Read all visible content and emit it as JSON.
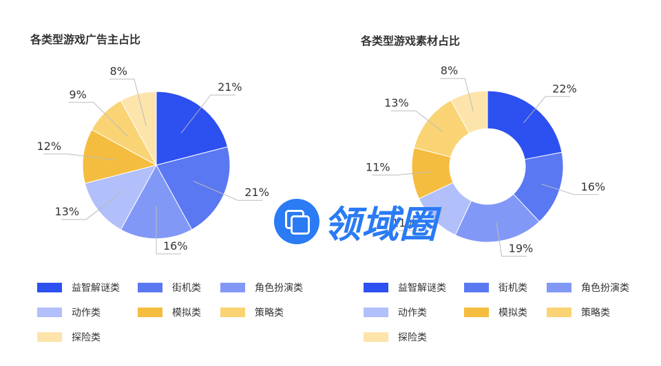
{
  "colors": [
    "#2d50f0",
    "#5a78f2",
    "#8298f7",
    "#b1bffa",
    "#f5bd3f",
    "#fad474",
    "#fde4ab"
  ],
  "chart_data": [
    {
      "type": "pie",
      "title": "各类型游戏广告主占比",
      "categories": [
        "益智解谜类",
        "街机类",
        "角色扮演类",
        "动作类",
        "模拟类",
        "策略类",
        "探险类"
      ],
      "values": [
        21,
        21,
        16,
        13,
        12,
        9,
        8
      ],
      "labels": [
        "21%",
        "21%",
        "16%",
        "13%",
        "12%",
        "9%",
        "8%"
      ],
      "legend_position": "bottom"
    },
    {
      "type": "pie",
      "variant": "donut",
      "title": "各类型游戏素材占比",
      "categories": [
        "益智解谜类",
        "街机类",
        "角色扮演类",
        "动作类",
        "模拟类",
        "策略类",
        "探险类"
      ],
      "values": [
        22,
        16,
        19,
        11,
        11,
        13,
        8
      ],
      "labels": [
        "22%",
        "16%",
        "19%",
        "11%",
        "11%",
        "13%",
        "8%"
      ],
      "legend_position": "bottom"
    }
  ],
  "watermark": {
    "text": "领域圈"
  }
}
